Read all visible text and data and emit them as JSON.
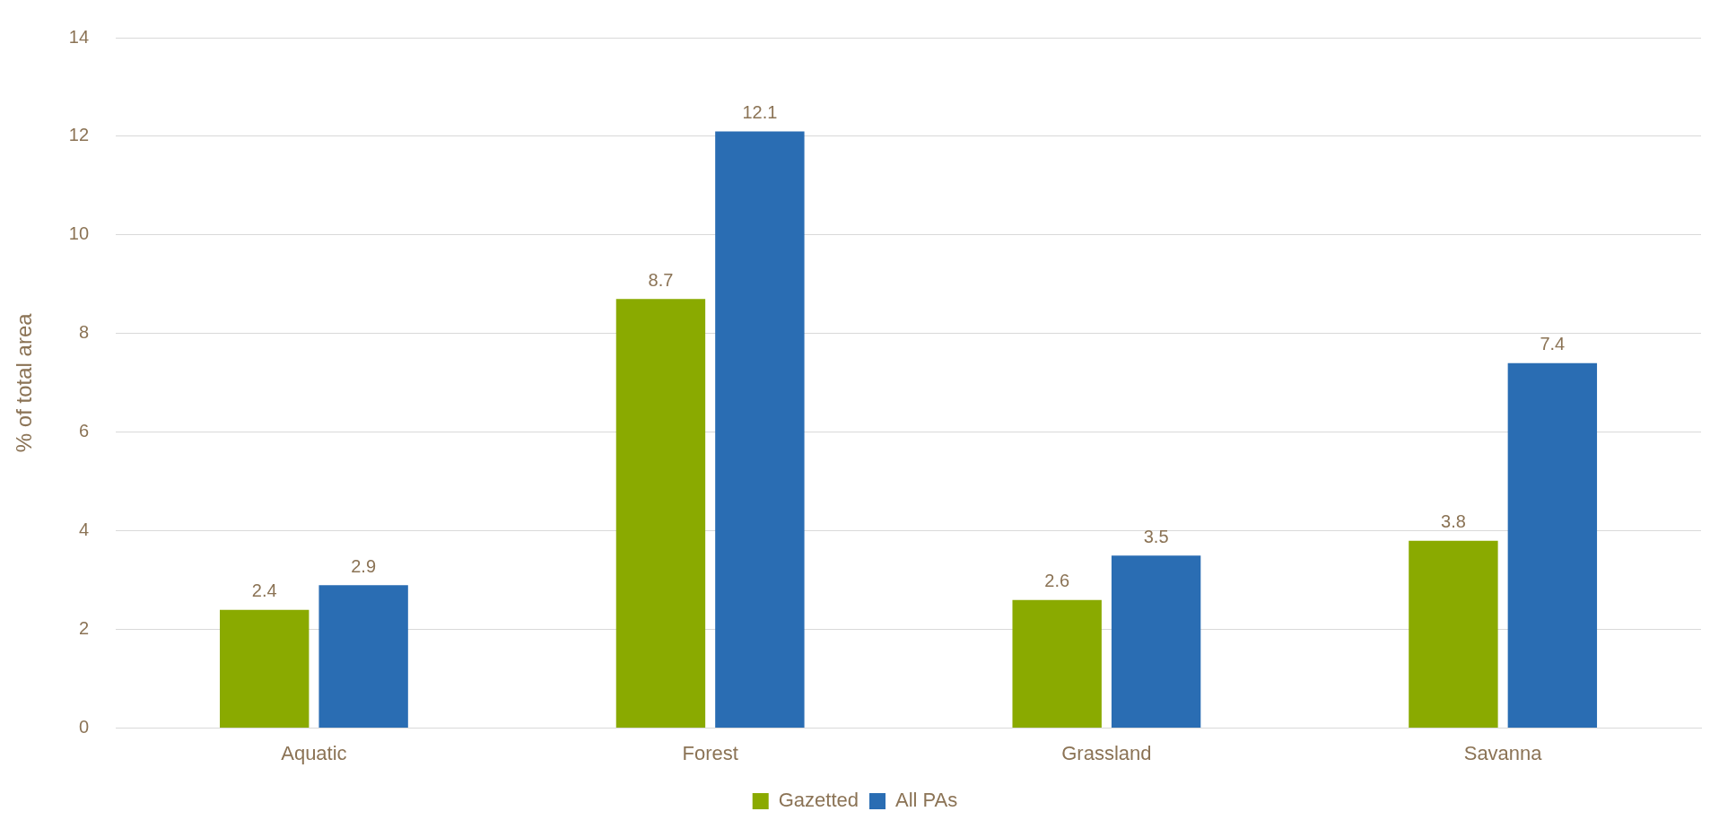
{
  "chart_data": {
    "type": "bar",
    "ylabel": "% of total area",
    "categories": [
      "Aquatic",
      "Forest",
      "Grassland",
      "Savanna"
    ],
    "series": [
      {
        "name": "Gazetted",
        "color": "#8aaa00",
        "values": [
          2.4,
          8.7,
          2.6,
          3.8
        ]
      },
      {
        "name": "All PAs",
        "color": "#2a6db3",
        "values": [
          2.9,
          12.1,
          3.5,
          7.4
        ]
      }
    ],
    "ylim": [
      0,
      14
    ],
    "yticks": [
      0,
      2,
      4,
      6,
      8,
      10,
      12,
      14
    ],
    "grid": "y",
    "legend": "bottom",
    "data_labels": true
  }
}
